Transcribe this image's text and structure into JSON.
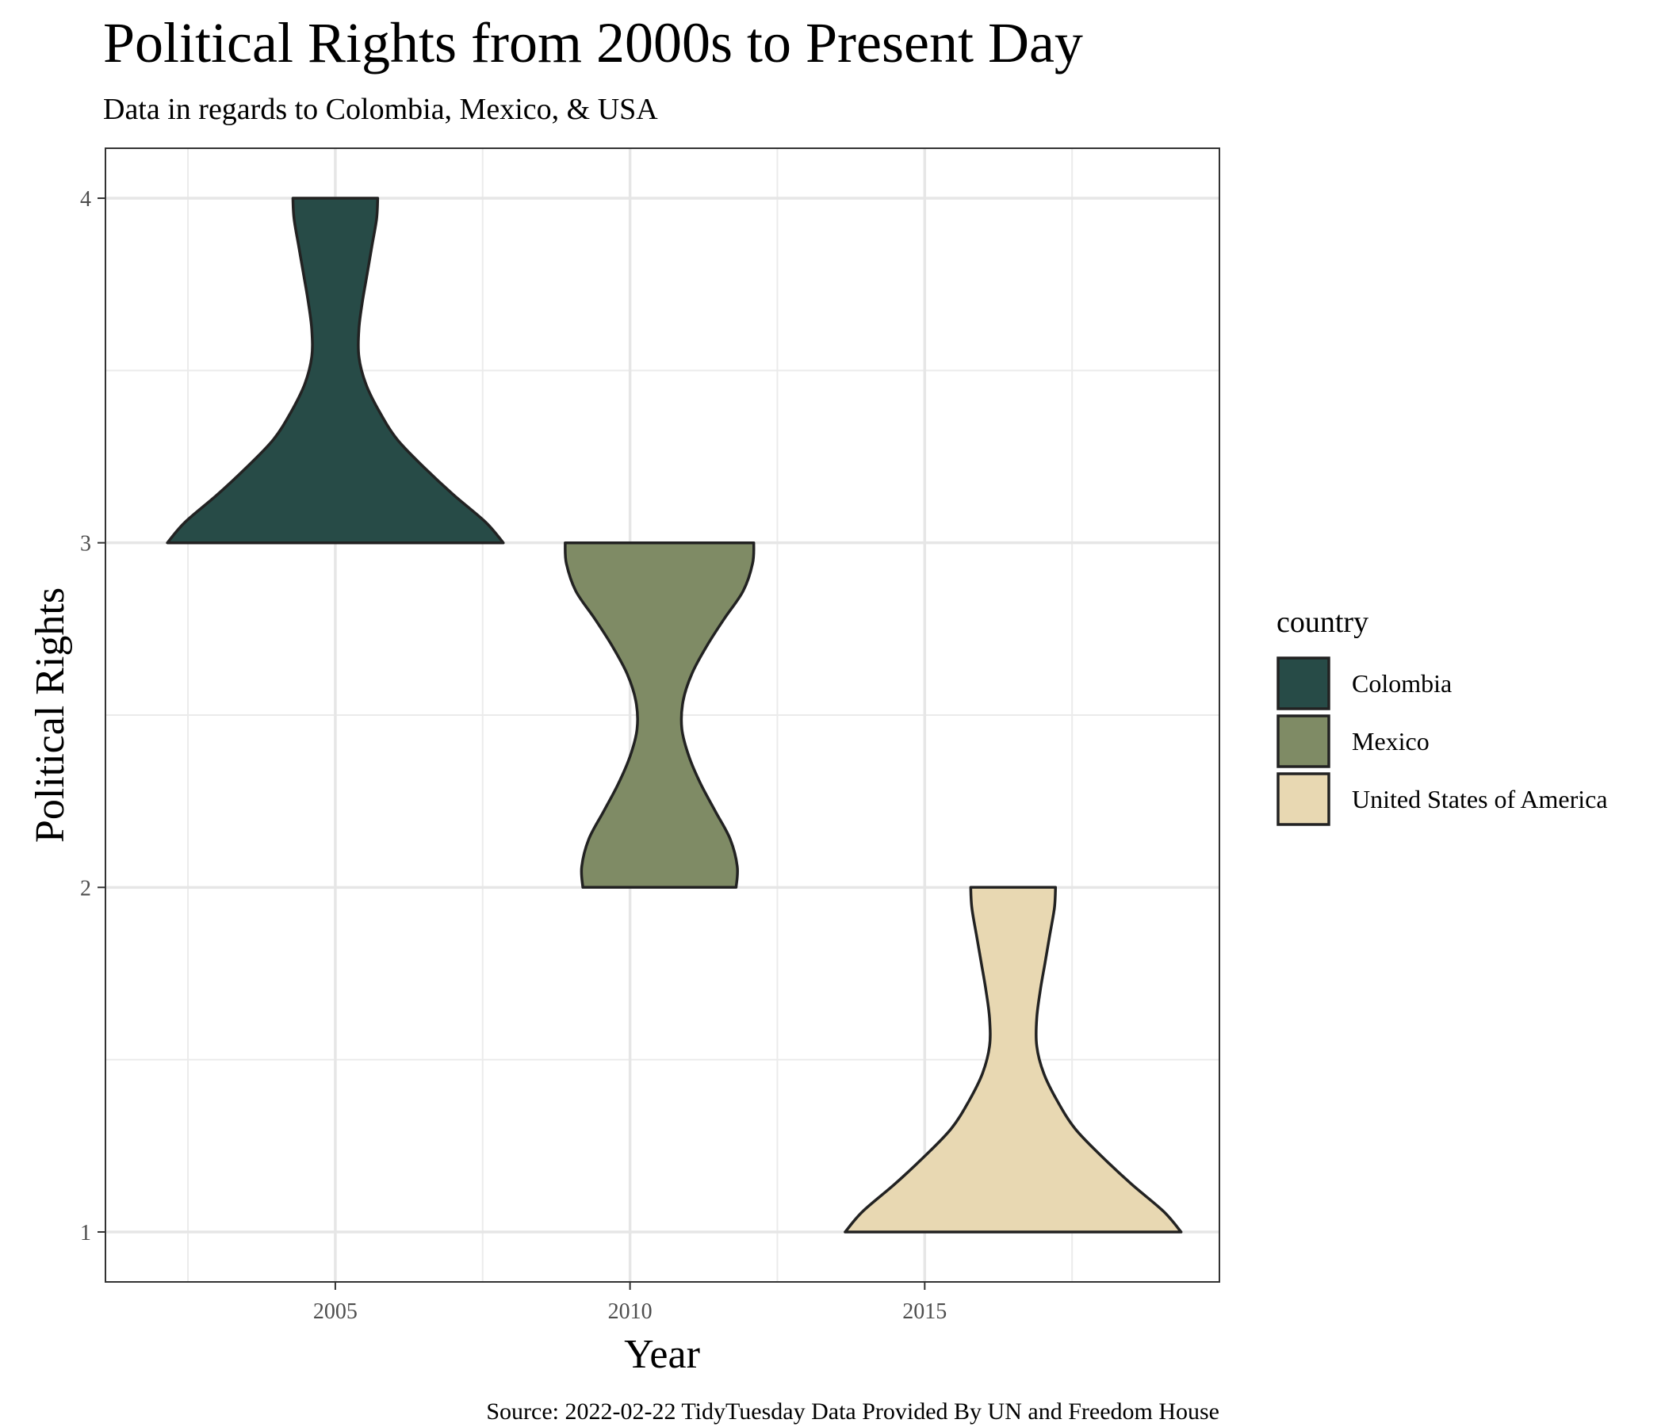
{
  "chart_data": {
    "type": "violin",
    "title": "Political Rights from 2000s to Present Day",
    "subtitle": "Data in regards to Colombia, Mexico, & USA",
    "xlabel": "Year",
    "ylabel": "Political Rights",
    "caption": "Source: 2022-02-22 TidyTuesday Data Provided By UN and Freedom House",
    "xlim": [
      2001.1,
      2020.0
    ],
    "ylim": [
      0.855,
      4.145
    ],
    "x_ticks": [
      2005,
      2010,
      2015
    ],
    "x_tick_labels": [
      "2005",
      "2010",
      "2015"
    ],
    "y_ticks": [
      1,
      2,
      3,
      4
    ],
    "y_tick_labels": [
      "1",
      "2",
      "3",
      "4"
    ],
    "grid": true,
    "legend": {
      "title": "country",
      "position": "right"
    },
    "series": [
      {
        "name": "Colombia",
        "color": "#274b47",
        "x_center": 2005,
        "y_range": [
          3,
          4
        ],
        "density_profile": [
          {
            "y": 3.0,
            "half_width": 2.85
          },
          {
            "y": 3.06,
            "half_width": 2.55
          },
          {
            "y": 3.14,
            "half_width": 2.0
          },
          {
            "y": 3.22,
            "half_width": 1.5
          },
          {
            "y": 3.3,
            "half_width": 1.05
          },
          {
            "y": 3.38,
            "half_width": 0.75
          },
          {
            "y": 3.46,
            "half_width": 0.52
          },
          {
            "y": 3.54,
            "half_width": 0.4
          },
          {
            "y": 3.62,
            "half_width": 0.4
          },
          {
            "y": 3.7,
            "half_width": 0.46
          },
          {
            "y": 3.78,
            "half_width": 0.54
          },
          {
            "y": 3.86,
            "half_width": 0.62
          },
          {
            "y": 3.94,
            "half_width": 0.7
          },
          {
            "y": 4.0,
            "half_width": 0.72
          }
        ]
      },
      {
        "name": "Mexico",
        "color": "#7f8b65",
        "x_center": 2010.5,
        "y_range": [
          2,
          3
        ],
        "density_profile": [
          {
            "y": 2.0,
            "half_width": 1.3
          },
          {
            "y": 2.06,
            "half_width": 1.32
          },
          {
            "y": 2.14,
            "half_width": 1.2
          },
          {
            "y": 2.22,
            "half_width": 0.95
          },
          {
            "y": 2.3,
            "half_width": 0.7
          },
          {
            "y": 2.38,
            "half_width": 0.5
          },
          {
            "y": 2.46,
            "half_width": 0.38
          },
          {
            "y": 2.54,
            "half_width": 0.4
          },
          {
            "y": 2.62,
            "half_width": 0.55
          },
          {
            "y": 2.7,
            "half_width": 0.8
          },
          {
            "y": 2.78,
            "half_width": 1.1
          },
          {
            "y": 2.86,
            "half_width": 1.42
          },
          {
            "y": 2.94,
            "half_width": 1.58
          },
          {
            "y": 3.0,
            "half_width": 1.6
          }
        ]
      },
      {
        "name": "United States of America",
        "color": "#e8d8b2",
        "x_center": 2016.5,
        "y_range": [
          1,
          2
        ],
        "density_profile": [
          {
            "y": 1.0,
            "half_width": 2.85
          },
          {
            "y": 1.06,
            "half_width": 2.55
          },
          {
            "y": 1.14,
            "half_width": 2.0
          },
          {
            "y": 1.22,
            "half_width": 1.5
          },
          {
            "y": 1.3,
            "half_width": 1.05
          },
          {
            "y": 1.38,
            "half_width": 0.75
          },
          {
            "y": 1.46,
            "half_width": 0.52
          },
          {
            "y": 1.54,
            "half_width": 0.4
          },
          {
            "y": 1.62,
            "half_width": 0.4
          },
          {
            "y": 1.7,
            "half_width": 0.46
          },
          {
            "y": 1.78,
            "half_width": 0.54
          },
          {
            "y": 1.86,
            "half_width": 0.62
          },
          {
            "y": 1.94,
            "half_width": 0.7
          },
          {
            "y": 2.0,
            "half_width": 0.72
          }
        ]
      }
    ]
  }
}
